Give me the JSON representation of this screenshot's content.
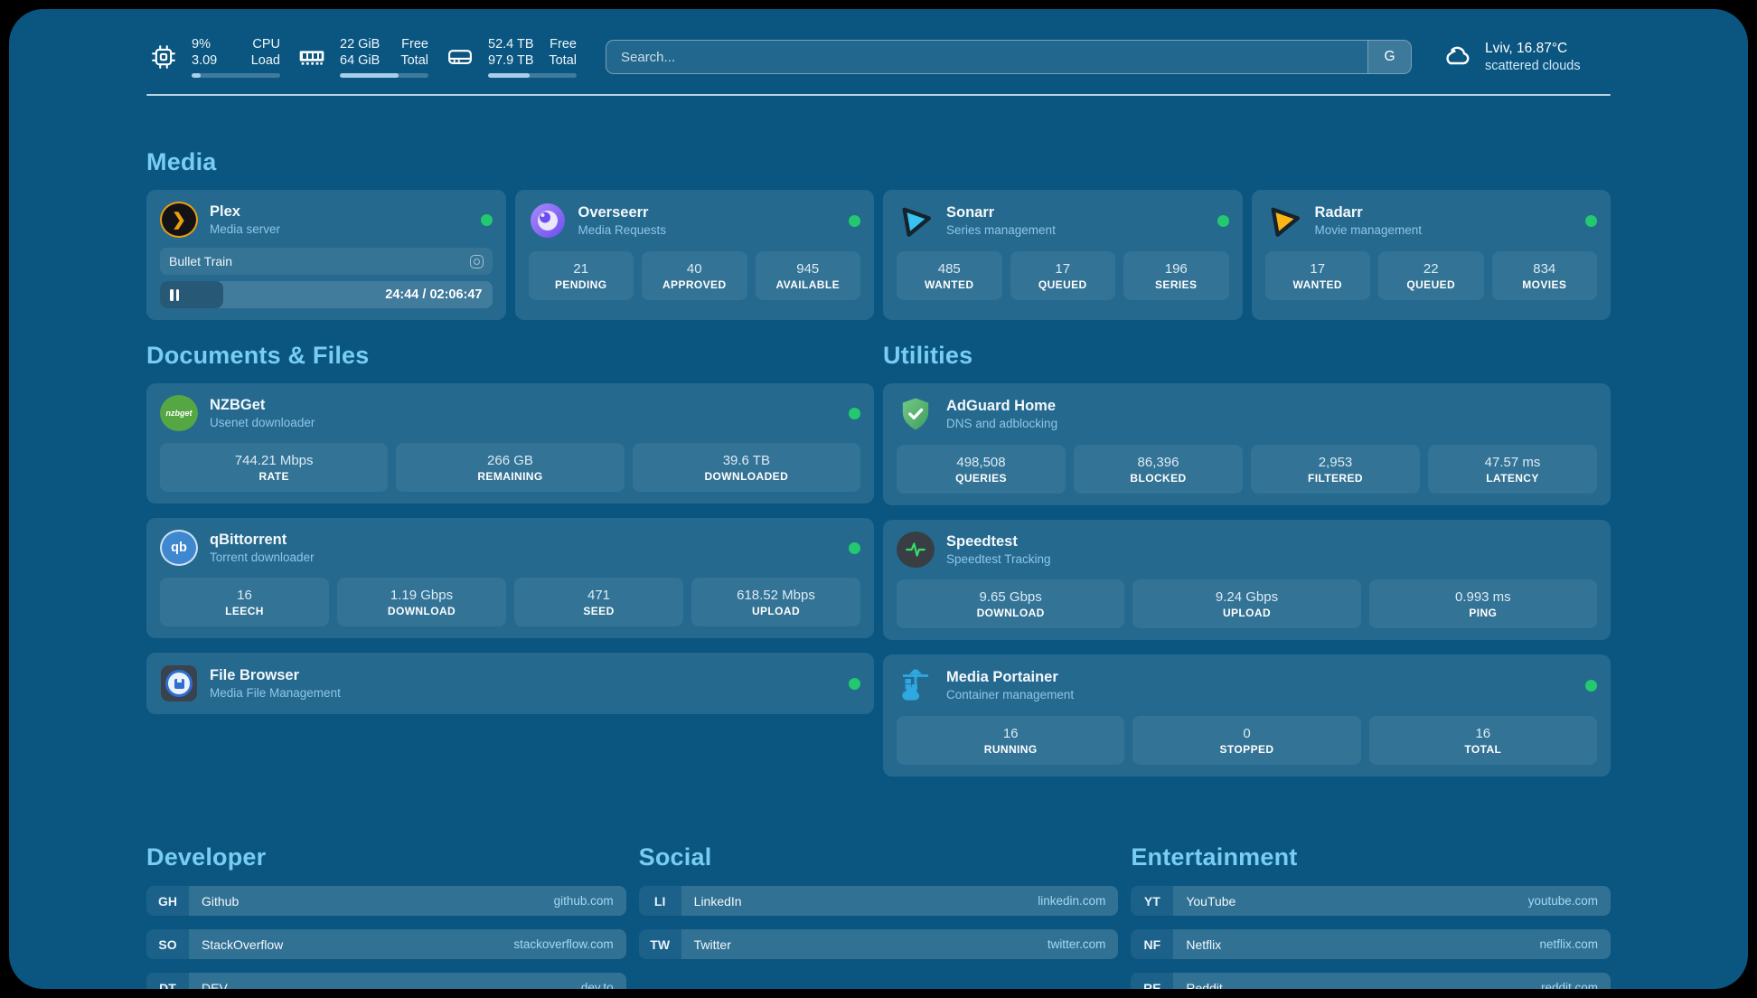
{
  "colors": {
    "background": "#0a5680",
    "card": "rgba(255,255,255,0.115)",
    "section_title": "#79cdf2",
    "status_online": "#23c96e"
  },
  "header": {
    "stats": [
      {
        "icon": "cpu-icon",
        "values": [
          "9%",
          "3.09"
        ],
        "labels": [
          "CPU",
          "Load"
        ],
        "progress": 10
      },
      {
        "icon": "memory-icon",
        "values": [
          "22 GiB",
          "64 GiB"
        ],
        "labels": [
          "Free",
          "Total"
        ],
        "progress": 66
      },
      {
        "icon": "disk-icon",
        "values": [
          "52.4 TB",
          "97.9 TB"
        ],
        "labels": [
          "Free",
          "Total"
        ],
        "progress": 47
      }
    ],
    "search": {
      "placeholder": "Search...",
      "button_label": "G"
    },
    "weather": {
      "icon": "cloud-icon",
      "location": "Lviv, 16.87°C",
      "condition": "scattered clouds"
    }
  },
  "media": {
    "title": "Media",
    "plex": {
      "name": "Plex",
      "subtitle": "Media server",
      "status": "online",
      "now_playing": {
        "title": "Bullet Train",
        "time_display": "24:44 / 02:06:47",
        "progress_pct": 19,
        "state": "paused"
      }
    },
    "overseerr": {
      "name": "Overseerr",
      "subtitle": "Media Requests",
      "status": "online",
      "stats": [
        {
          "value": "21",
          "label": "PENDING"
        },
        {
          "value": "40",
          "label": "APPROVED"
        },
        {
          "value": "945",
          "label": "AVAILABLE"
        }
      ]
    },
    "sonarr": {
      "name": "Sonarr",
      "subtitle": "Series management",
      "status": "online",
      "stats": [
        {
          "value": "485",
          "label": "WANTED"
        },
        {
          "value": "17",
          "label": "QUEUED"
        },
        {
          "value": "196",
          "label": "SERIES"
        }
      ]
    },
    "radarr": {
      "name": "Radarr",
      "subtitle": "Movie management",
      "status": "online",
      "stats": [
        {
          "value": "17",
          "label": "WANTED"
        },
        {
          "value": "22",
          "label": "QUEUED"
        },
        {
          "value": "834",
          "label": "MOVIES"
        }
      ]
    }
  },
  "documents": {
    "title": "Documents & Files",
    "nzbget": {
      "name": "NZBGet",
      "subtitle": "Usenet downloader",
      "status": "online",
      "stats": [
        {
          "value": "744.21 Mbps",
          "label": "RATE"
        },
        {
          "value": "266 GB",
          "label": "REMAINING"
        },
        {
          "value": "39.6 TB",
          "label": "DOWNLOADED"
        }
      ]
    },
    "qbittorrent": {
      "name": "qBittorrent",
      "subtitle": "Torrent downloader",
      "status": "online",
      "stats": [
        {
          "value": "16",
          "label": "LEECH"
        },
        {
          "value": "1.19 Gbps",
          "label": "DOWNLOAD"
        },
        {
          "value": "471",
          "label": "SEED"
        },
        {
          "value": "618.52 Mbps",
          "label": "UPLOAD"
        }
      ]
    },
    "filebrowser": {
      "name": "File Browser",
      "subtitle": "Media File Management",
      "status": "online"
    }
  },
  "utilities": {
    "title": "Utilities",
    "adguard": {
      "name": "AdGuard Home",
      "subtitle": "DNS and adblocking",
      "stats": [
        {
          "value": "498,508",
          "label": "QUERIES"
        },
        {
          "value": "86,396",
          "label": "BLOCKED"
        },
        {
          "value": "2,953",
          "label": "FILTERED"
        },
        {
          "value": "47.57 ms",
          "label": "LATENCY"
        }
      ]
    },
    "speedtest": {
      "name": "Speedtest",
      "subtitle": "Speedtest Tracking",
      "stats": [
        {
          "value": "9.65 Gbps",
          "label": "DOWNLOAD"
        },
        {
          "value": "9.24 Gbps",
          "label": "UPLOAD"
        },
        {
          "value": "0.993 ms",
          "label": "PING"
        }
      ]
    },
    "portainer": {
      "name": "Media Portainer",
      "subtitle": "Container management",
      "status": "online",
      "stats": [
        {
          "value": "16",
          "label": "RUNNING"
        },
        {
          "value": "0",
          "label": "STOPPED"
        },
        {
          "value": "16",
          "label": "TOTAL"
        }
      ]
    }
  },
  "links": {
    "developer": {
      "title": "Developer",
      "items": [
        {
          "abbr": "GH",
          "name": "Github",
          "url": "github.com"
        },
        {
          "abbr": "SO",
          "name": "StackOverflow",
          "url": "stackoverflow.com"
        },
        {
          "abbr": "DT",
          "name": "DEV",
          "url": "dev.to"
        }
      ]
    },
    "social": {
      "title": "Social",
      "items": [
        {
          "abbr": "LI",
          "name": "LinkedIn",
          "url": "linkedin.com"
        },
        {
          "abbr": "TW",
          "name": "Twitter",
          "url": "twitter.com"
        }
      ]
    },
    "entertainment": {
      "title": "Entertainment",
      "items": [
        {
          "abbr": "YT",
          "name": "YouTube",
          "url": "youtube.com"
        },
        {
          "abbr": "NF",
          "name": "Netflix",
          "url": "netflix.com"
        },
        {
          "abbr": "RE",
          "name": "Reddit",
          "url": "reddit.com"
        }
      ]
    }
  }
}
